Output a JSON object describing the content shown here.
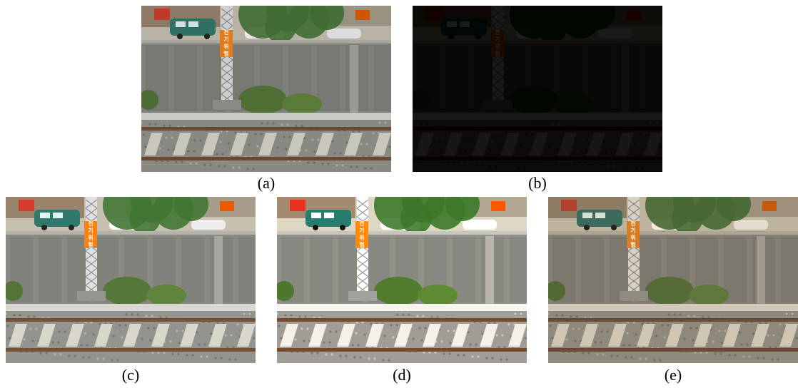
{
  "figure": {
    "panels": [
      {
        "id": "a",
        "caption": "(a)",
        "variant": "original",
        "brightness": 1.0
      },
      {
        "id": "b",
        "caption": "(b)",
        "variant": "low-light",
        "brightness": 0.18
      },
      {
        "id": "c",
        "caption": "(c)",
        "variant": "enhanced",
        "brightness": 1.08
      },
      {
        "id": "d",
        "caption": "(d)",
        "variant": "enhanced-high-contrast",
        "brightness": 1.15
      },
      {
        "id": "e",
        "caption": "(e)",
        "variant": "enhanced-warm",
        "brightness": 0.98
      }
    ],
    "sign_text": [
      "전",
      "기",
      "위",
      "험"
    ],
    "colors": {
      "sign_orange": "#e07a1c",
      "van_teal": "#2f6f64",
      "wall_gray": "#7f7f7a",
      "foliage_green": "#3f6b32",
      "rail_brown": "#6b4a35"
    }
  }
}
